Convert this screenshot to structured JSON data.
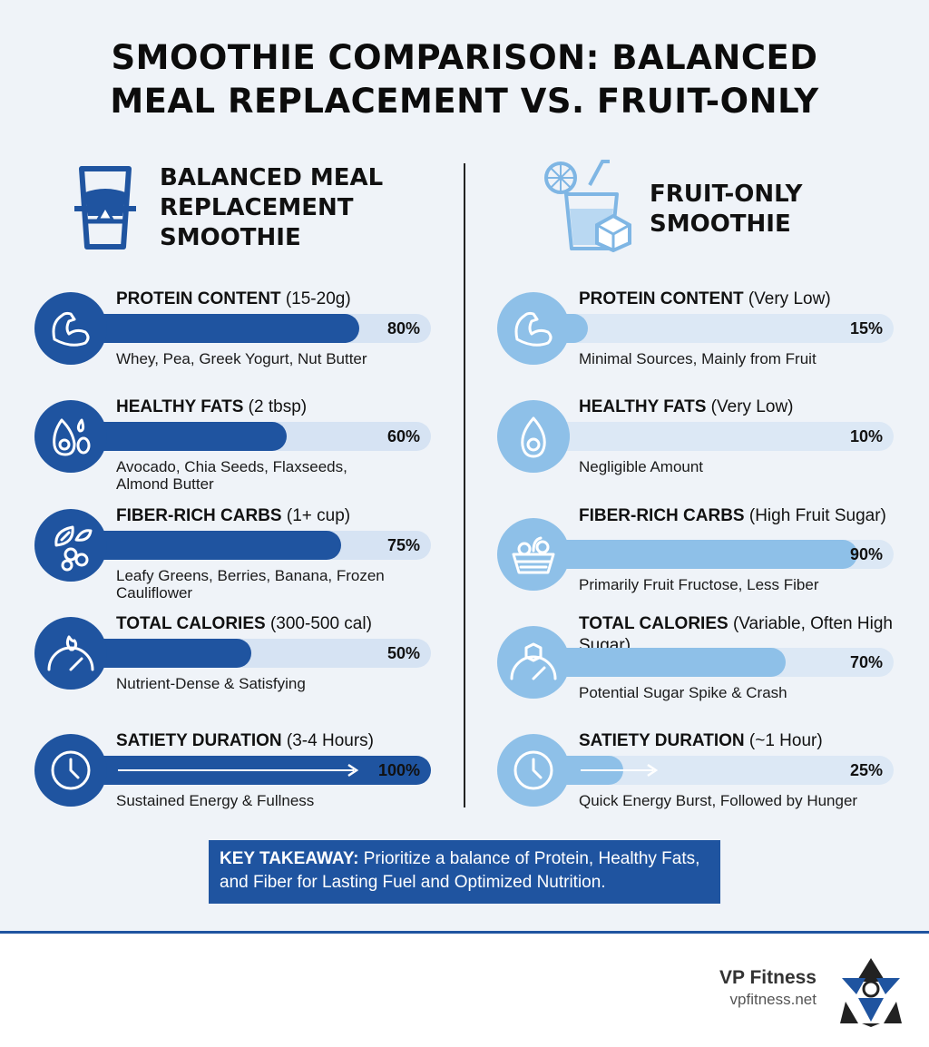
{
  "title_line1": "SMOOTHIE COMPARISON: BALANCED",
  "title_line2": "MEAL REPLACEMENT VS. FRUIT-ONLY",
  "left_column": {
    "heading": [
      "BALANCED MEAL",
      "REPLACEMENT",
      "SMOOTHIE"
    ],
    "icon": "meal-jar-icon",
    "accent_color": "#1f54a0"
  },
  "right_column": {
    "heading": [
      "FRUIT-ONLY",
      "SMOOTHIE"
    ],
    "icon": "fruit-drink-icon",
    "accent_color": "#8ec0e8"
  },
  "chart_data": [
    {
      "type": "bar",
      "series": [
        {
          "values": [
            80,
            60,
            75,
            50,
            100
          ]
        }
      ],
      "categories": [
        "PROTEIN CONTENT",
        "HEALTHY FATS",
        "FIBER-RICH CARBS",
        "TOTAL CALORIES",
        "SATIETY DURATION"
      ],
      "rows": [
        {
          "label": "PROTEIN CONTENT",
          "qualifier": "(15-20g)",
          "value": 80,
          "pct_text": "80%",
          "desc": [
            "Whey, Pea, Greek Yogurt, Nut Butter"
          ],
          "icon": "flexed-arm-icon"
        },
        {
          "label": "HEALTHY FATS",
          "qualifier": "(2 tbsp)",
          "value": 60,
          "pct_text": "60%",
          "desc": [
            "Avocado, Chia Seeds, Flaxseeds,",
            "Almond Butter"
          ],
          "icon": "avocado-seeds-icon"
        },
        {
          "label": "FIBER-RICH CARBS",
          "qualifier": "(1+ cup)",
          "value": 75,
          "pct_text": "75%",
          "desc": [
            "Leafy Greens, Berries, Banana, Frozen",
            "Cauliflower"
          ],
          "icon": "leaf-berries-icon"
        },
        {
          "label": "TOTAL CALORIES",
          "qualifier": "(300-500 cal)",
          "value": 50,
          "pct_text": "50%",
          "desc": [
            "Nutrient-Dense & Satisfying"
          ],
          "icon": "flame-gauge-icon"
        },
        {
          "label": "SATIETY DURATION",
          "qualifier": "(3-4 Hours)",
          "value": 100,
          "pct_text": "100%",
          "desc": [
            "Sustained Energy & Fullness"
          ],
          "icon": "clock-icon"
        }
      ]
    },
    {
      "type": "bar",
      "series": [
        {
          "values": [
            15,
            10,
            90,
            70,
            25
          ]
        }
      ],
      "categories": [
        "PROTEIN CONTENT",
        "HEALTHY FATS",
        "FIBER-RICH CARBS",
        "TOTAL CALORIES",
        "SATIETY DURATION"
      ],
      "rows": [
        {
          "label": "PROTEIN CONTENT",
          "qualifier": "(Very Low)",
          "value": 15,
          "pct_text": "15%",
          "desc": [
            "Minimal Sources, Mainly from Fruit"
          ],
          "icon": "flexed-arm-icon"
        },
        {
          "label": "HEALTHY FATS",
          "qualifier": "(Very Low)",
          "value": 10,
          "pct_text": "10%",
          "desc": [
            "Negligible Amount"
          ],
          "icon": "avocado-icon"
        },
        {
          "label": "FIBER-RICH CARBS",
          "qualifier": "(High Fruit Sugar)",
          "value": 90,
          "pct_text": "90%",
          "desc": [
            "Primarily Fruit Fructose, Less Fiber"
          ],
          "icon": "fruit-basket-icon"
        },
        {
          "label": "TOTAL CALORIES",
          "qualifier": "(Variable, Often High Sugar)",
          "value": 70,
          "pct_text": "70%",
          "desc": [
            "Potential Sugar Spike & Crash"
          ],
          "icon": "sugar-gauge-icon"
        },
        {
          "label": "SATIETY DURATION",
          "qualifier": "(~1 Hour)",
          "value": 25,
          "pct_text": "25%",
          "desc": [
            "Quick Energy Burst, Followed by Hunger"
          ],
          "icon": "clock-icon"
        }
      ]
    }
  ],
  "takeaway": {
    "lead": "KEY TAKEAWAY:",
    "text": " Prioritize a balance of Protein, Healthy Fats, and Fiber for Lasting Fuel and Optimized Nutrition."
  },
  "brand": {
    "name": "VP Fitness",
    "url": "vpfitness.net",
    "logo_icon": "vp-fitness-logo-icon"
  }
}
